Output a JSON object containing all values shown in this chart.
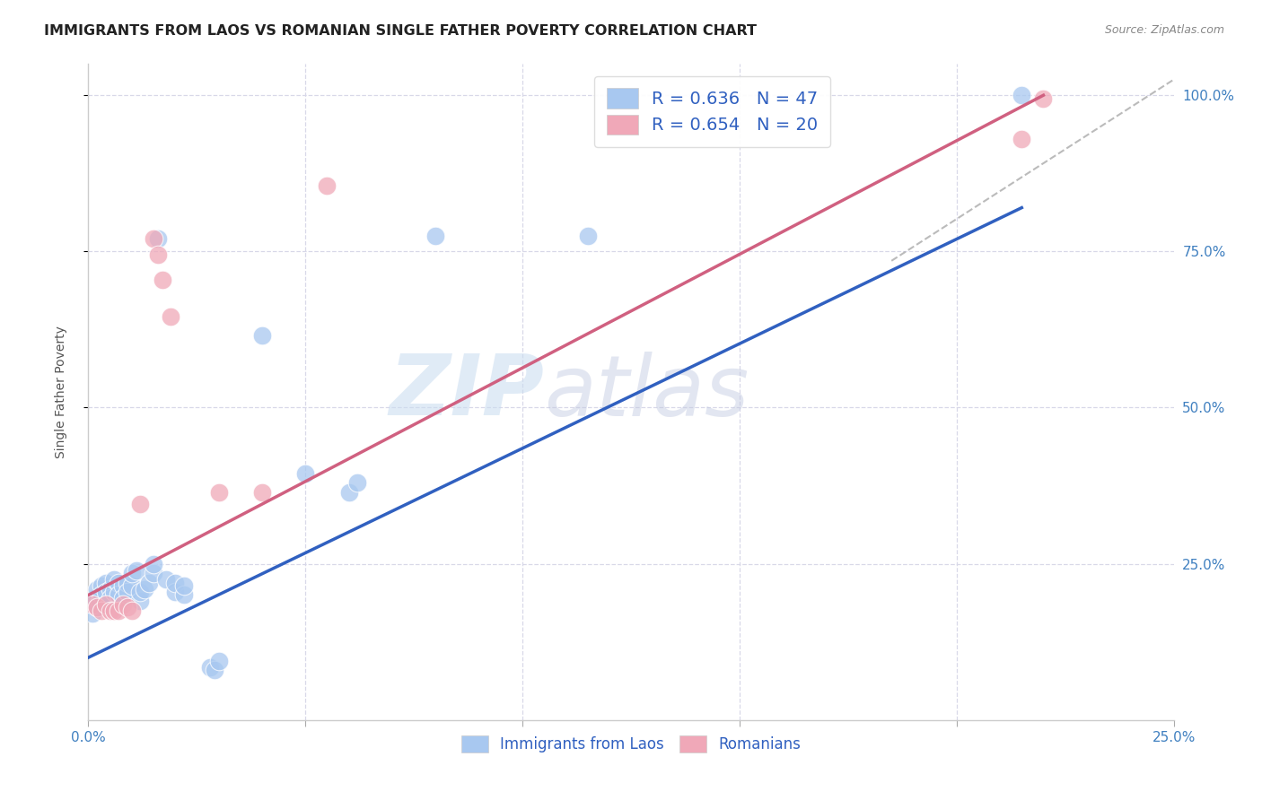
{
  "title": "IMMIGRANTS FROM LAOS VS ROMANIAN SINGLE FATHER POVERTY CORRELATION CHART",
  "source": "Source: ZipAtlas.com",
  "ylabel": "Single Father Poverty",
  "y_tick_labels_right": [
    "25.0%",
    "50.0%",
    "75.0%",
    "100.0%"
  ],
  "xlim": [
    0.0,
    0.25
  ],
  "ylim": [
    0.0,
    1.05
  ],
  "legend_entries": [
    {
      "label": "R = 0.636   N = 47",
      "color": "#A8C8F0"
    },
    {
      "label": "R = 0.654   N = 20",
      "color": "#F0A8B8"
    }
  ],
  "legend_bottom": [
    {
      "label": "Immigrants from Laos",
      "color": "#A8C8F0"
    },
    {
      "label": "Romanians",
      "color": "#F0A8B8"
    }
  ],
  "blue_scatter": [
    [
      0.0005,
      0.185
    ],
    [
      0.001,
      0.19
    ],
    [
      0.001,
      0.17
    ],
    [
      0.0015,
      0.195
    ],
    [
      0.002,
      0.18
    ],
    [
      0.002,
      0.21
    ],
    [
      0.0025,
      0.19
    ],
    [
      0.003,
      0.215
    ],
    [
      0.003,
      0.2
    ],
    [
      0.004,
      0.22
    ],
    [
      0.004,
      0.205
    ],
    [
      0.004,
      0.185
    ],
    [
      0.005,
      0.21
    ],
    [
      0.005,
      0.195
    ],
    [
      0.006,
      0.205
    ],
    [
      0.006,
      0.225
    ],
    [
      0.007,
      0.22
    ],
    [
      0.007,
      0.2
    ],
    [
      0.008,
      0.215
    ],
    [
      0.008,
      0.195
    ],
    [
      0.009,
      0.22
    ],
    [
      0.009,
      0.205
    ],
    [
      0.01,
      0.215
    ],
    [
      0.01,
      0.235
    ],
    [
      0.011,
      0.24
    ],
    [
      0.012,
      0.19
    ],
    [
      0.012,
      0.205
    ],
    [
      0.013,
      0.21
    ],
    [
      0.014,
      0.22
    ],
    [
      0.015,
      0.235
    ],
    [
      0.015,
      0.25
    ],
    [
      0.016,
      0.77
    ],
    [
      0.018,
      0.225
    ],
    [
      0.02,
      0.205
    ],
    [
      0.02,
      0.22
    ],
    [
      0.022,
      0.2
    ],
    [
      0.022,
      0.215
    ],
    [
      0.028,
      0.085
    ],
    [
      0.029,
      0.08
    ],
    [
      0.03,
      0.095
    ],
    [
      0.04,
      0.615
    ],
    [
      0.05,
      0.395
    ],
    [
      0.06,
      0.365
    ],
    [
      0.062,
      0.38
    ],
    [
      0.08,
      0.775
    ],
    [
      0.115,
      0.775
    ],
    [
      0.215,
      1.0
    ]
  ],
  "pink_scatter": [
    [
      0.001,
      0.185
    ],
    [
      0.002,
      0.18
    ],
    [
      0.003,
      0.175
    ],
    [
      0.004,
      0.185
    ],
    [
      0.005,
      0.175
    ],
    [
      0.006,
      0.175
    ],
    [
      0.007,
      0.175
    ],
    [
      0.008,
      0.185
    ],
    [
      0.009,
      0.18
    ],
    [
      0.01,
      0.175
    ],
    [
      0.012,
      0.345
    ],
    [
      0.015,
      0.77
    ],
    [
      0.016,
      0.745
    ],
    [
      0.017,
      0.705
    ],
    [
      0.019,
      0.645
    ],
    [
      0.03,
      0.365
    ],
    [
      0.04,
      0.365
    ],
    [
      0.055,
      0.855
    ],
    [
      0.215,
      0.93
    ],
    [
      0.22,
      0.995
    ]
  ],
  "blue_line": {
    "x": [
      0.0,
      0.215
    ],
    "y": [
      0.1,
      0.82
    ]
  },
  "pink_line": {
    "x": [
      0.0,
      0.22
    ],
    "y": [
      0.2,
      1.0
    ]
  },
  "dashed_line": {
    "x": [
      0.185,
      0.25
    ],
    "y": [
      0.735,
      1.025
    ]
  },
  "watermark_zip": "ZIP",
  "watermark_atlas": "atlas",
  "background_color": "#FFFFFF",
  "grid_color": "#D8D8E8",
  "blue_color": "#A8C8F0",
  "pink_color": "#F0A8B8",
  "blue_line_color": "#3060C0",
  "pink_line_color": "#D06080",
  "title_fontsize": 11.5,
  "axis_label_fontsize": 10,
  "tick_fontsize": 11
}
